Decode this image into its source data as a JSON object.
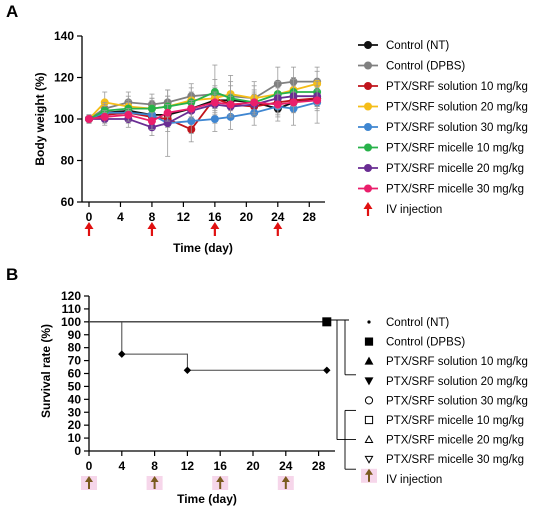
{
  "chart_data": [
    {
      "panel_label": "A",
      "type": "line",
      "xlabel": "Time (day)",
      "ylabel": "Body weight (%)",
      "xlim": [
        0,
        30
      ],
      "ylim": [
        60,
        140
      ],
      "xticks": [
        0,
        4,
        8,
        12,
        16,
        20,
        24,
        28
      ],
      "yticks": [
        60,
        80,
        100,
        120,
        140
      ],
      "x": [
        0,
        2,
        5,
        8,
        10,
        13,
        16,
        18,
        21,
        24,
        26,
        29
      ],
      "legend_position": "right",
      "series": [
        {
          "name": "Control (NT)",
          "color": "#111111",
          "marker": "circle",
          "values": [
            100,
            103,
            104,
            102,
            102,
            105,
            109,
            109,
            108,
            105,
            108,
            110
          ],
          "errors": [
            2,
            3,
            3,
            3,
            3,
            4,
            4,
            4,
            4,
            4,
            4,
            4
          ]
        },
        {
          "name": "Control (DPBS)",
          "color": "#808080",
          "marker": "circle",
          "values": [
            100,
            105,
            108,
            107,
            108,
            111,
            112,
            111,
            110,
            117,
            118,
            118
          ],
          "errors": [
            2,
            4,
            5,
            5,
            6,
            6,
            14,
            10,
            8,
            8,
            7,
            7
          ]
        },
        {
          "name": "PTX/SRF solution 10 mg/kg",
          "color": "#c0141c",
          "marker": "circle",
          "values": [
            100,
            102,
            103,
            101,
            100,
            95,
            110,
            107,
            106,
            108,
            109,
            110
          ],
          "errors": [
            2,
            3,
            4,
            4,
            4,
            6,
            5,
            5,
            5,
            5,
            5,
            5
          ]
        },
        {
          "name": "PTX/SRF solution 20 mg/kg",
          "color": "#f5bd18",
          "marker": "circle",
          "values": [
            100,
            108,
            106,
            105,
            106,
            109,
            110,
            112,
            110,
            112,
            114,
            117
          ],
          "errors": [
            2,
            5,
            5,
            5,
            5,
            6,
            6,
            6,
            6,
            6,
            6,
            6
          ]
        },
        {
          "name": "PTX/SRF solution 30 mg/kg",
          "color": "#3f86d1",
          "marker": "circle",
          "values": [
            100,
            103,
            103,
            102,
            98,
            99,
            100,
            101,
            103,
            106,
            105,
            108
          ],
          "errors": [
            2,
            4,
            5,
            7,
            16,
            6,
            6,
            6,
            6,
            7,
            8,
            10
          ]
        },
        {
          "name": "PTX/SRF micelle 10 mg/kg",
          "color": "#27b24a",
          "marker": "circle",
          "values": [
            100,
            104,
            105,
            105,
            106,
            108,
            113,
            110,
            108,
            112,
            113,
            113
          ],
          "errors": [
            2,
            4,
            4,
            5,
            5,
            5,
            6,
            6,
            6,
            6,
            6,
            6
          ]
        },
        {
          "name": "PTX/SRF micelle 20 mg/kg",
          "color": "#6a2d93",
          "marker": "circle",
          "values": [
            100,
            100,
            100,
            96,
            98,
            104,
            107,
            106,
            107,
            110,
            111,
            111
          ],
          "errors": [
            2,
            3,
            4,
            4,
            4,
            4,
            5,
            5,
            5,
            5,
            5,
            5
          ]
        },
        {
          "name": "PTX/SRF micelle 30 mg/kg",
          "color": "#ea1e6b",
          "marker": "circle",
          "values": [
            100,
            101,
            102,
            99,
            103,
            105,
            108,
            107,
            108,
            107,
            108,
            109
          ],
          "errors": [
            2,
            3,
            3,
            4,
            4,
            4,
            5,
            5,
            5,
            5,
            5,
            5
          ]
        }
      ],
      "annotations": {
        "iv_injection_days": [
          0,
          8,
          16,
          24
        ],
        "marker": "red up arrow",
        "color": "#e01010",
        "label": "IV injection"
      }
    },
    {
      "panel_label": "B",
      "type": "line",
      "subtype": "step",
      "xlabel": "Time (day)",
      "ylabel": "Survival rate (%)",
      "xlim": [
        0,
        30
      ],
      "ylim": [
        0,
        120
      ],
      "xticks": [
        0,
        4,
        8,
        12,
        16,
        20,
        24,
        28
      ],
      "yticks": [
        0,
        10,
        20,
        30,
        40,
        50,
        60,
        70,
        80,
        90,
        100,
        110,
        120
      ],
      "series": [
        {
          "name": "Control (NT)",
          "marker": "dot",
          "x": [
            0,
            29
          ],
          "values": [
            100,
            100
          ]
        },
        {
          "name": "Control (DPBS)",
          "marker": "filled-square",
          "x": [
            0,
            29
          ],
          "values": [
            100,
            100
          ]
        },
        {
          "name": "PTX/SRF solution 10 mg/kg",
          "marker": "filled-triangle-up",
          "x": [
            0,
            29
          ],
          "values": [
            100,
            100
          ]
        },
        {
          "name": "PTX/SRF solution 20 mg/kg",
          "marker": "filled-triangle-down",
          "x": [
            0,
            29
          ],
          "values": [
            100,
            100
          ]
        },
        {
          "name": "PTX/SRF solution 30 mg/kg",
          "marker": "filled-diamond",
          "x": [
            0,
            4,
            12,
            29
          ],
          "values": [
            100,
            75,
            62.5,
            62.5
          ]
        },
        {
          "name": "PTX/SRF micelle 10 mg/kg",
          "marker": "open-circle",
          "x": [
            0,
            29
          ],
          "values": [
            100,
            100
          ]
        },
        {
          "name": "PTX/SRF micelle 20 mg/kg",
          "marker": "open-square",
          "x": [
            0,
            29
          ],
          "values": [
            100,
            100
          ]
        },
        {
          "name": "PTX/SRF micelle 30 mg/kg",
          "marker": "open-triangle-up",
          "x": [
            0,
            29
          ],
          "values": [
            100,
            100
          ]
        }
      ],
      "extra_legend_entry": {
        "name": "PTX/SRF micelle 30 mg/kg",
        "marker": "open-triangle-down"
      },
      "annotations": {
        "iv_injection_days": [
          0,
          8,
          16,
          24
        ],
        "marker": "brown up arrow on pink box",
        "arrow_color": "#7a5a1e",
        "box_color": "#f6d6ea",
        "label": "IV injection"
      }
    }
  ]
}
